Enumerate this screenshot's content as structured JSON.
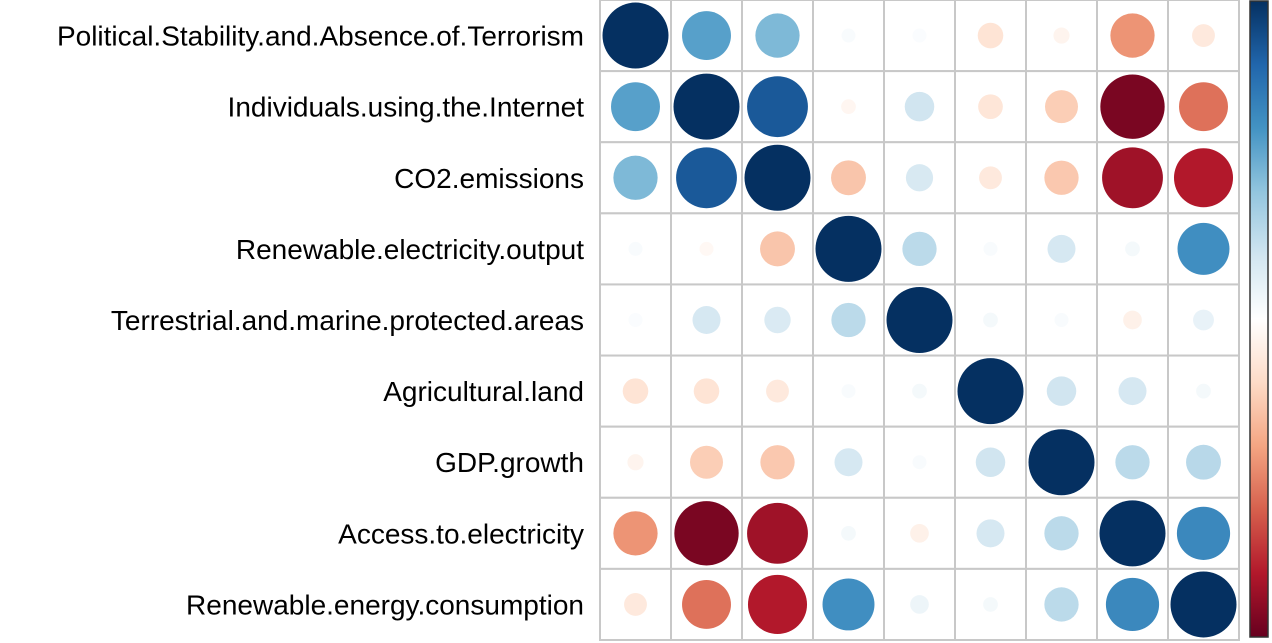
{
  "chart_data": {
    "type": "heatmap",
    "style": "correlation-circle-matrix",
    "row_labels": [
      "Political.Stability.and.Absence.of.Terrorism",
      "Individuals.using.the.Internet",
      "CO2.emissions",
      "Renewable.electricity.output",
      "Terrestrial.and.marine.protected.areas",
      "Agricultural.land",
      "GDP.growth",
      "Access.to.electricity",
      "Renewable.energy.consumption"
    ],
    "matrix": [
      [
        1.0,
        0.55,
        0.45,
        0.03,
        0.02,
        -0.15,
        -0.06,
        -0.45,
        -0.12
      ],
      [
        0.55,
        1.0,
        0.85,
        -0.05,
        0.2,
        -0.14,
        -0.25,
        -0.95,
        -0.55
      ],
      [
        0.45,
        0.85,
        1.0,
        -0.28,
        0.17,
        -0.12,
        -0.27,
        -0.85,
        -0.8
      ],
      [
        0.03,
        -0.04,
        -0.28,
        1.0,
        0.27,
        0.03,
        0.18,
        0.05,
        0.62
      ],
      [
        0.02,
        0.18,
        0.16,
        0.27,
        1.0,
        0.05,
        0.03,
        -0.08,
        0.1
      ],
      [
        -0.15,
        -0.15,
        -0.12,
        0.03,
        0.05,
        1.0,
        0.2,
        0.18,
        0.05
      ],
      [
        -0.06,
        -0.25,
        -0.27,
        0.18,
        0.03,
        0.2,
        1.0,
        0.27,
        0.28
      ],
      [
        -0.45,
        -0.95,
        -0.85,
        0.05,
        -0.08,
        0.18,
        0.27,
        1.0,
        0.65
      ],
      [
        -0.12,
        -0.55,
        -0.8,
        0.62,
        0.08,
        0.05,
        0.27,
        0.65,
        1.0
      ]
    ],
    "value_range": [
      -1,
      1
    ],
    "colorbar": {
      "position": "right",
      "colors": [
        "#67001F",
        "#B2182B",
        "#D6604D",
        "#F4A582",
        "#FDDBC7",
        "#FFFFFF",
        "#D1E5F0",
        "#92C5DE",
        "#4393C3",
        "#2166AC",
        "#053061"
      ]
    },
    "grid": true,
    "grid_color": "#C8C8C8"
  }
}
